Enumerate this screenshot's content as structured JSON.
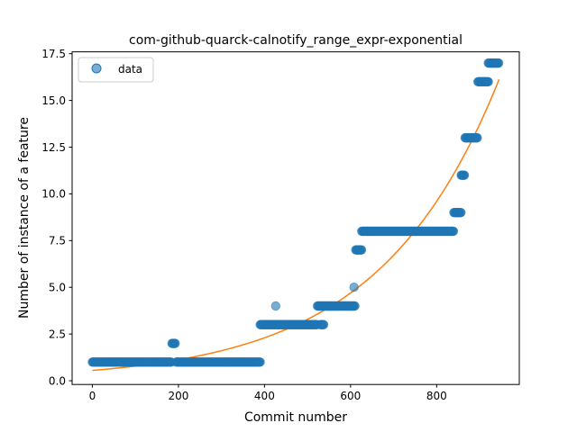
{
  "chart_data": {
    "type": "scatter",
    "title": "com-github-quarck-calnotify_range_expr-exponential",
    "xlabel": "Commit number",
    "ylabel": "Number of instance of a feature",
    "xlim": [
      -47,
      992
    ],
    "ylim": [
      -0.2,
      17.6
    ],
    "x_ticks": [
      0,
      200,
      400,
      600,
      800
    ],
    "y_ticks": [
      0.0,
      2.5,
      5.0,
      7.5,
      10.0,
      12.5,
      15.0,
      17.5
    ],
    "x_tick_labels": [
      "0",
      "200",
      "400",
      "600",
      "800"
    ],
    "y_tick_labels": [
      "0.0",
      "2.5",
      "5.0",
      "7.5",
      "10.0",
      "12.5",
      "15.0",
      "17.5"
    ],
    "grid": false,
    "legend": {
      "position": "top-left",
      "entries": [
        "data"
      ]
    },
    "series": [
      {
        "name": "data",
        "kind": "points",
        "color": "#1f77b4",
        "segments": [
          {
            "x_start": 0,
            "x_end": 183,
            "y": 1
          },
          {
            "x_start": 185,
            "x_end": 193,
            "y": 2
          },
          {
            "x_start": 195,
            "x_end": 390,
            "y": 1
          },
          {
            "x_start": 390,
            "x_end": 522,
            "y": 3
          },
          {
            "x": 426,
            "y": 4
          },
          {
            "x_start": 523,
            "x_end": 610,
            "y": 4
          },
          {
            "x_start": 530,
            "x_end": 538,
            "y": 3
          },
          {
            "x": 608,
            "y": 5
          },
          {
            "x_start": 612,
            "x_end": 626,
            "y": 7
          },
          {
            "x_start": 626,
            "x_end": 840,
            "y": 8
          },
          {
            "x_start": 840,
            "x_end": 857,
            "y": 9
          },
          {
            "x_start": 857,
            "x_end": 865,
            "y": 11
          },
          {
            "x_start": 866,
            "x_end": 895,
            "y": 13
          },
          {
            "x_start": 896,
            "x_end": 920,
            "y": 16
          },
          {
            "x_start": 920,
            "x_end": 945,
            "y": 17
          }
        ]
      },
      {
        "kind": "line",
        "color": "#ff7f0e",
        "curve": {
          "form": "a*exp(b*x)",
          "a": 0.55,
          "b": 0.003575,
          "x_start": 0,
          "x_end": 945
        }
      }
    ]
  }
}
